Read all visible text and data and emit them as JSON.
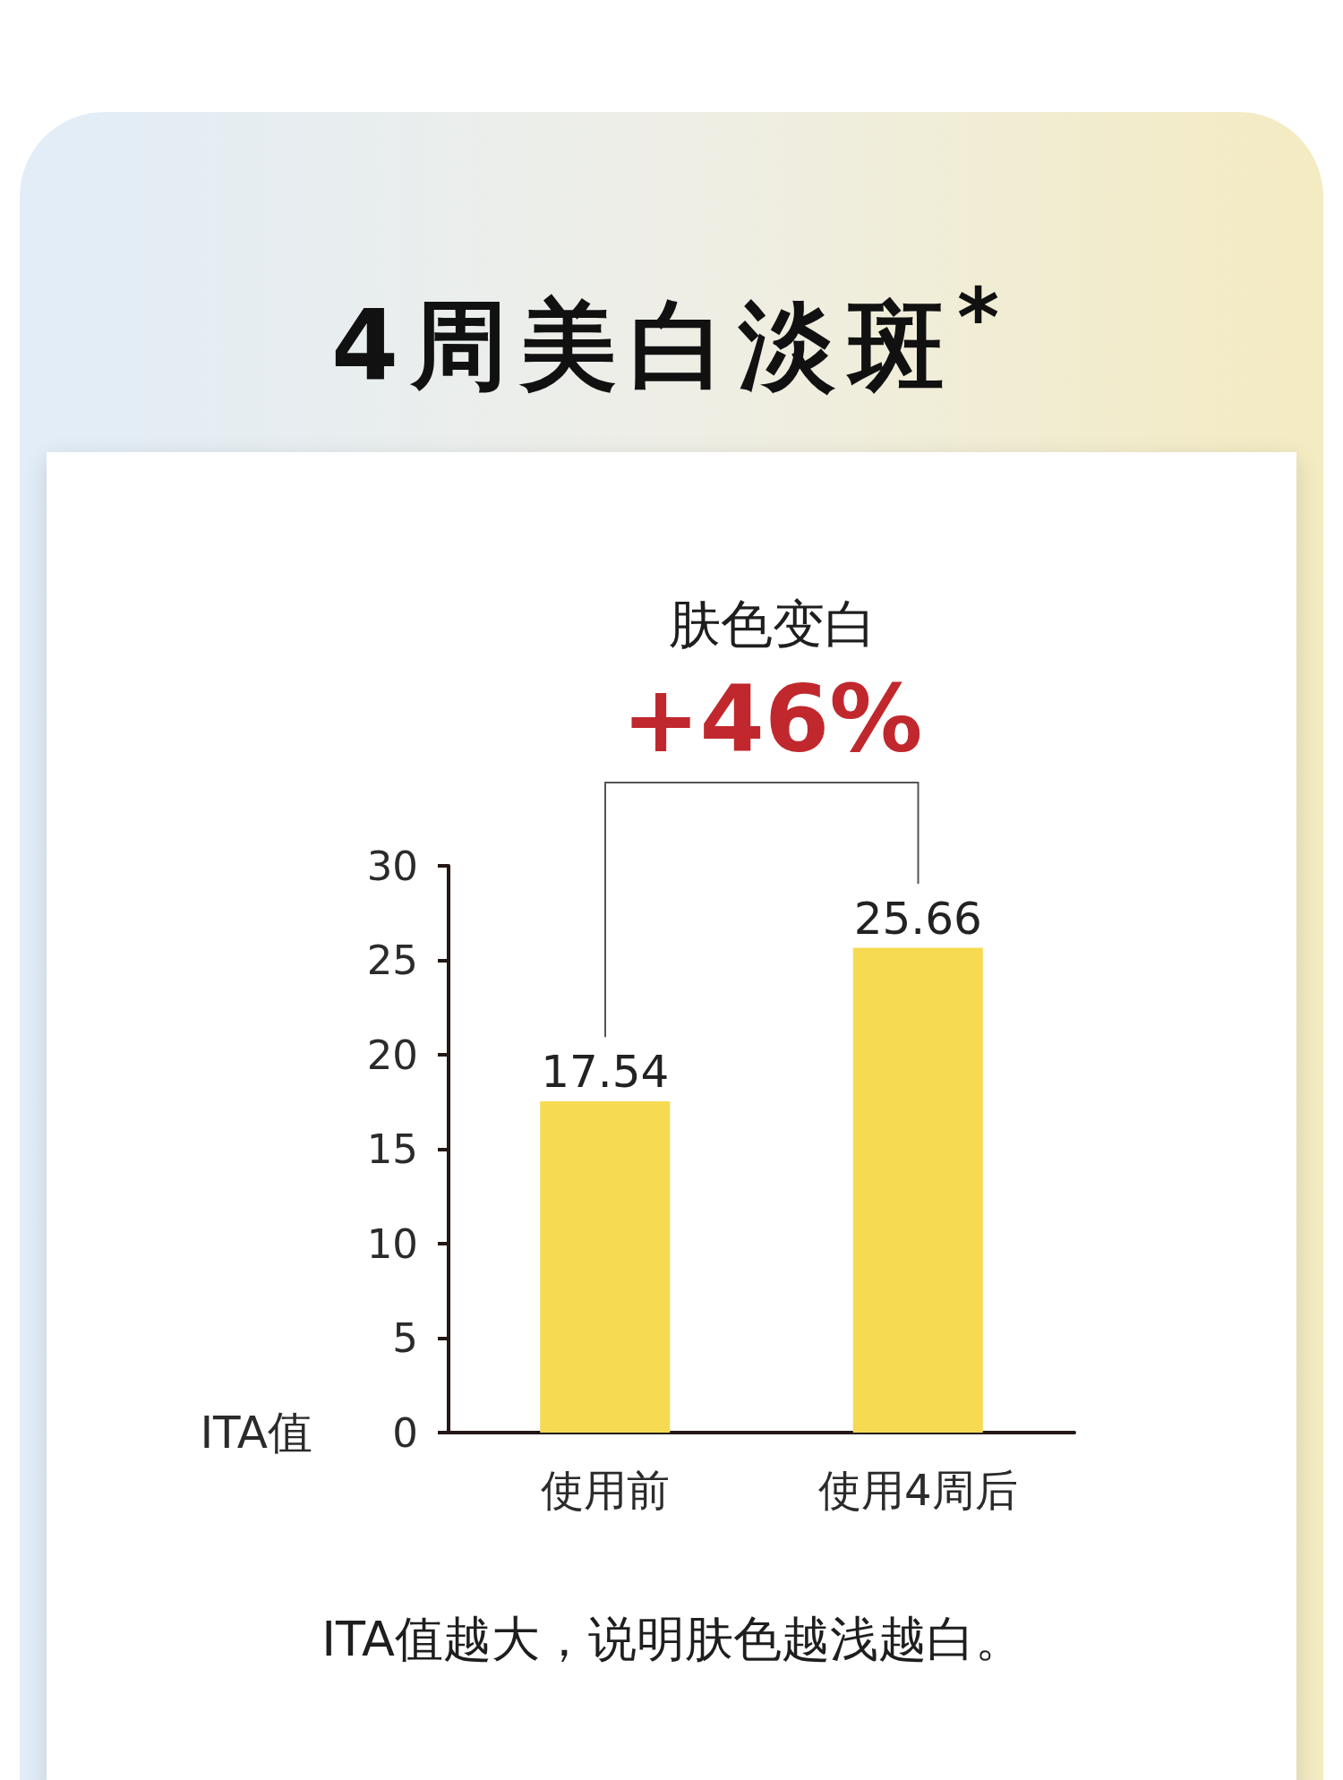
{
  "chart_data": {
    "type": "bar",
    "title": "4周美白淡斑$^{*}$",
    "ylabel": "ITA值",
    "categories": [
      "使用前",
      "使用4周后"
    ],
    "values": [
      17.54,
      25.66
    ],
    "color": "#f6da52",
    "ylim": [
      0,
      30
    ],
    "yticks": [
      0,
      5,
      10,
      15,
      20,
      25,
      30
    ],
    "data_labels": true,
    "annotations": [
      "肤色变白",
      "+46%",
      "ITA值越大，说明肤色越浅越白。"
    ]
  }
}
